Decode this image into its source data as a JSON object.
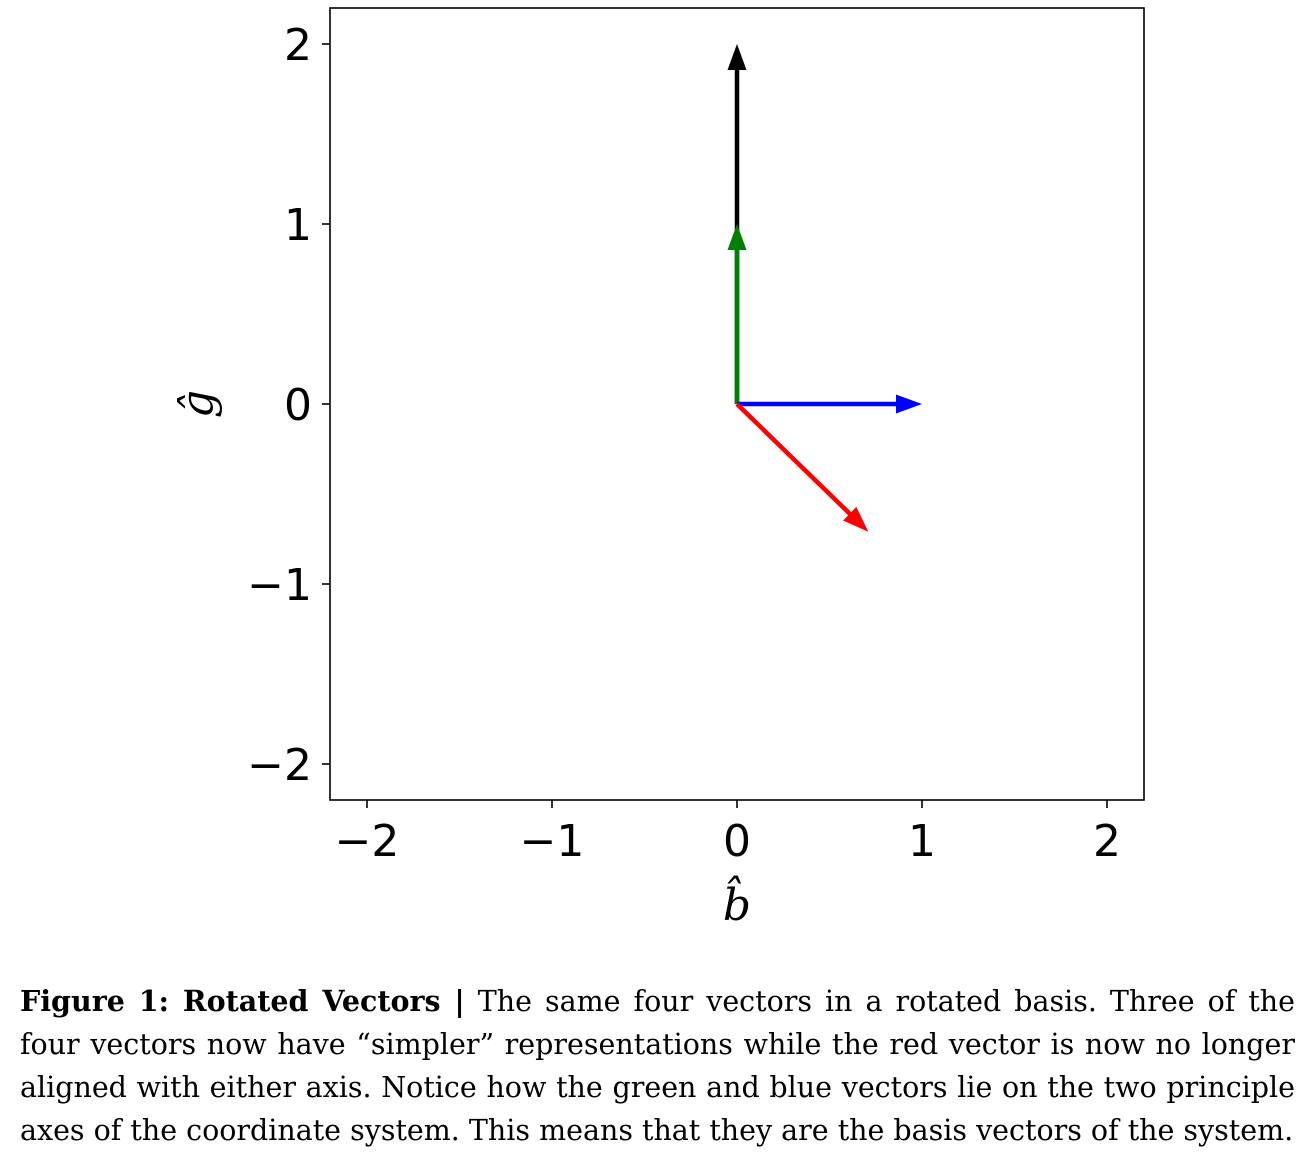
{
  "chart_data": {
    "type": "quiver",
    "xlabel": "b̂",
    "ylabel": "ĝ",
    "xlim": [
      -2.2,
      2.2
    ],
    "ylim": [
      -2.2,
      2.2
    ],
    "xticks": [
      -2,
      -1,
      0,
      1,
      2
    ],
    "yticks": [
      -2,
      -1,
      0,
      1,
      2
    ],
    "xtick_labels": [
      "−2",
      "−1",
      "0",
      "1",
      "2"
    ],
    "ytick_labels": [
      "−2",
      "−1",
      "0",
      "1",
      "2"
    ],
    "grid": false,
    "vectors": [
      {
        "name": "black",
        "color": "#000000",
        "origin": [
          0,
          0
        ],
        "components": [
          0,
          2
        ]
      },
      {
        "name": "green",
        "color": "#008000",
        "origin": [
          0,
          0
        ],
        "components": [
          0,
          1
        ]
      },
      {
        "name": "blue",
        "color": "#0000ff",
        "origin": [
          0,
          0
        ],
        "components": [
          1,
          0
        ]
      },
      {
        "name": "red",
        "color": "#ff0000",
        "origin": [
          0,
          0
        ],
        "components": [
          0.71,
          -0.71
        ]
      }
    ]
  },
  "caption": {
    "label": "Figure 1: Rotated Vectors |",
    "text": " The same four vectors in a rotated basis. Three of the four vectors now have “simpler” representations while the red vector is now no longer aligned with either axis. Notice how the green and blue vectors lie on the two principle axes of the coordinate system. This means that they are the basis vectors of the system."
  }
}
